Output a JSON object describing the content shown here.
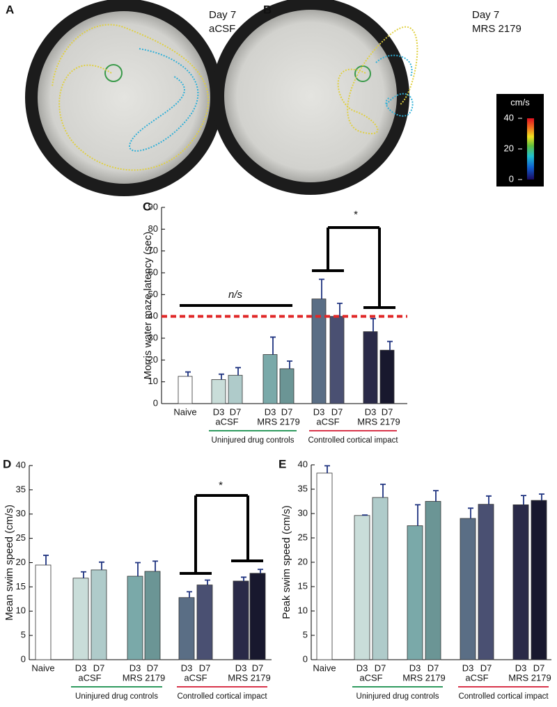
{
  "images": [
    {
      "panel": "A",
      "lines": [
        "Day 7",
        "aCSF"
      ]
    },
    {
      "panel": "B",
      "lines": [
        "Day 7",
        "MRS 2179"
      ]
    }
  ],
  "colorbar": {
    "label": "cm/s",
    "lim": [
      0,
      40
    ],
    "ticks": [
      0,
      20,
      40
    ]
  },
  "chart_data": [
    {
      "type": "bar",
      "panel": "C",
      "ylabel": "Morris water maze  latency (sec)",
      "categories": [
        "Naive",
        "D3",
        "D7",
        "D3",
        "D7",
        "D3",
        "D7",
        "D3",
        "D7"
      ],
      "groups": [
        "aCSF",
        "MRS 2179",
        "aCSF",
        "MRS 2179"
      ],
      "supergroups": [
        {
          "label": "Uninjured drug controls",
          "color": "#2e9a5e"
        },
        {
          "label": "Controlled cortical impact",
          "color": "#d8344a"
        }
      ],
      "values": [
        12.5,
        11,
        13,
        22.5,
        16,
        48,
        40,
        33,
        24.5
      ],
      "errors": [
        2,
        2.5,
        3.5,
        8,
        3.5,
        9,
        6,
        6,
        4
      ],
      "colors": [
        "#ffffff",
        "#c9ddd9",
        "#afcbca",
        "#7aa9a9",
        "#6b9595",
        "#5a6e85",
        "#4a5072",
        "#2a2a48",
        "#18182e"
      ],
      "error_color": "#1f3380",
      "ylim": [
        0,
        90
      ],
      "yticks": [
        0,
        10,
        20,
        30,
        40,
        50,
        60,
        70,
        80,
        90
      ],
      "reference_line": {
        "value": 40,
        "color": "#e02828"
      },
      "annotations": [
        "n/s",
        "*"
      ]
    },
    {
      "type": "bar",
      "panel": "D",
      "ylabel": "Mean swim speed (cm/s)",
      "categories": [
        "Naive",
        "D3",
        "D7",
        "D3",
        "D7",
        "D3",
        "D7",
        "D3",
        "D7"
      ],
      "groups": [
        "aCSF",
        "MRS 2179",
        "aCSF",
        "MRS 2179"
      ],
      "supergroups": [
        {
          "label": "Uninjured drug controls",
          "color": "#2e9a5e"
        },
        {
          "label": "Controlled cortical impact",
          "color": "#d8344a"
        }
      ],
      "values": [
        19.5,
        16.8,
        18.5,
        17.2,
        18.2,
        12.8,
        15.4,
        16.2,
        17.8
      ],
      "errors": [
        2,
        1.3,
        1.6,
        2.8,
        2.1,
        1.2,
        1,
        0.8,
        0.8
      ],
      "colors": [
        "#ffffff",
        "#c9ddd9",
        "#afcbca",
        "#7aa9a9",
        "#6b9595",
        "#5a6e85",
        "#4a5072",
        "#2a2a48",
        "#18182e"
      ],
      "error_color": "#1f3380",
      "ylim": [
        0,
        40
      ],
      "yticks": [
        0,
        5,
        10,
        15,
        20,
        25,
        30,
        35,
        40
      ],
      "annotations": [
        "*"
      ]
    },
    {
      "type": "bar",
      "panel": "E",
      "ylabel": "Peak swim speed (cm/s)",
      "categories": [
        "Naive",
        "D3",
        "D7",
        "D3",
        "D7",
        "D3",
        "D7",
        "D3",
        "D7"
      ],
      "groups": [
        "aCSF",
        "MRS 2179",
        "aCSF",
        "MRS 2179"
      ],
      "supergroups": [
        {
          "label": "Uninjured drug controls",
          "color": "#2e9a5e"
        },
        {
          "label": "Controlled cortical impact",
          "color": "#d8344a"
        }
      ],
      "values": [
        38.3,
        29.6,
        33.3,
        27.5,
        32.5,
        29,
        31.9,
        31.8,
        32.7
      ],
      "errors": [
        1.5,
        0.1,
        2.7,
        4.3,
        2.2,
        2.1,
        1.7,
        1.9,
        1.3
      ],
      "colors": [
        "#ffffff",
        "#c9ddd9",
        "#afcbca",
        "#7aa9a9",
        "#6b9595",
        "#5a6e85",
        "#4a5072",
        "#2a2a48",
        "#18182e"
      ],
      "error_color": "#1f3380",
      "ylim": [
        0,
        40
      ],
      "yticks": [
        0,
        5,
        10,
        15,
        20,
        25,
        30,
        35,
        40
      ],
      "annotations": []
    }
  ]
}
